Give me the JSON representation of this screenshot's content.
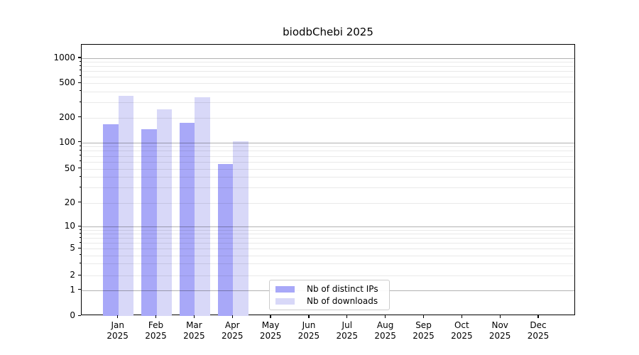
{
  "chart_data": {
    "type": "bar",
    "title": "biodbChebi 2025",
    "categories": [
      {
        "month": "Jan",
        "year": "2025"
      },
      {
        "month": "Feb",
        "year": "2025"
      },
      {
        "month": "Mar",
        "year": "2025"
      },
      {
        "month": "Apr",
        "year": "2025"
      },
      {
        "month": "May",
        "year": "2025"
      },
      {
        "month": "Jun",
        "year": "2025"
      },
      {
        "month": "Jul",
        "year": "2025"
      },
      {
        "month": "Aug",
        "year": "2025"
      },
      {
        "month": "Sep",
        "year": "2025"
      },
      {
        "month": "Oct",
        "year": "2025"
      },
      {
        "month": "Nov",
        "year": "2025"
      },
      {
        "month": "Dec",
        "year": "2025"
      }
    ],
    "series": [
      {
        "name": "Nb of distinct IPs",
        "color": "#a8a8f8",
        "values": [
          165,
          143,
          173,
          56,
          0,
          0,
          0,
          0,
          0,
          0,
          0,
          0
        ]
      },
      {
        "name": "Nb of downloads",
        "color": "#d8d8f8",
        "values": [
          358,
          248,
          343,
          104,
          0,
          0,
          0,
          0,
          0,
          0,
          0,
          0
        ]
      }
    ],
    "y_axis": {
      "scale": "symlog",
      "ticks": [
        0,
        1,
        2,
        5,
        10,
        20,
        50,
        100,
        200,
        500,
        1000
      ],
      "minor_ticks": [
        3,
        4,
        6,
        7,
        8,
        9,
        30,
        40,
        60,
        70,
        80,
        90,
        300,
        400,
        600,
        700,
        800,
        900
      ],
      "range_top": 1400
    },
    "x_axis": {
      "label_lines": 2
    },
    "legend": {
      "position": "lower center"
    },
    "grid": true
  }
}
